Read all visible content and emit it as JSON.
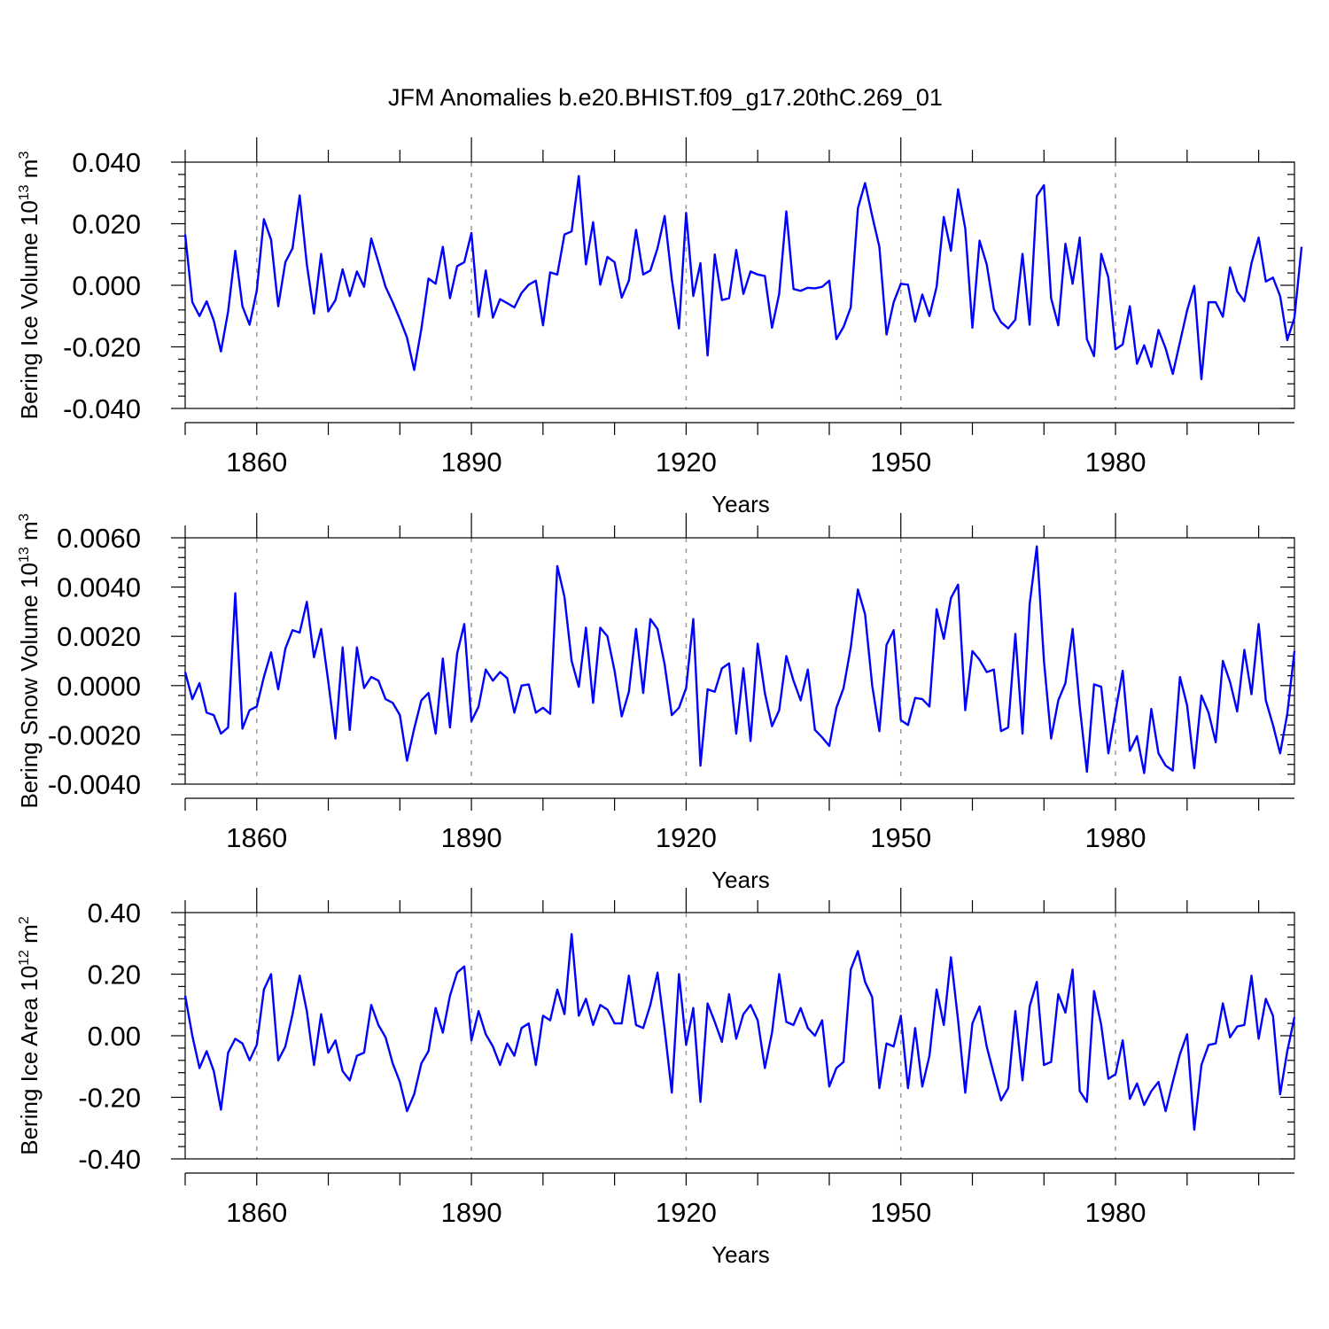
{
  "figure_title": "JFM Anomalies b.e20.BHIST.f09_g17.20thC.269_01",
  "line_color": "#0000ff",
  "chart_data": [
    {
      "type": "line",
      "id": "ice-volume",
      "ylabel": "Bering Ice Volume 10",
      "ylabel_exp": "13",
      "ylabel_unit": " m",
      "ylabel_unit_exp": "3",
      "xlabel": "Years",
      "xlim": [
        1850,
        2005
      ],
      "ylim": [
        -0.04,
        0.04
      ],
      "yticks": [
        -0.04,
        -0.02,
        0.0,
        0.02,
        0.04
      ],
      "ytick_labels": [
        "-0.040",
        "-0.020",
        "0.000",
        "0.020",
        "0.040"
      ],
      "xticks": [
        1860,
        1890,
        1920,
        1950,
        1980
      ],
      "xtick_labels": [
        "1860",
        "1890",
        "1920",
        "1950",
        "1980"
      ],
      "x_start": 1850,
      "values": [
        0.0165,
        -0.0055,
        -0.01,
        -0.0052,
        -0.0115,
        -0.0215,
        -0.0085,
        0.0112,
        -0.0068,
        -0.0128,
        -0.0018,
        0.0215,
        0.0148,
        -0.0068,
        0.0075,
        0.012,
        0.0292,
        0.0068,
        -0.0092,
        0.0102,
        -0.0085,
        -0.0048,
        0.0052,
        -0.0035,
        0.0045,
        -0.0005,
        0.0152,
        0.0075,
        -0.0005,
        -0.0055,
        -0.011,
        -0.017,
        -0.0275,
        -0.0142,
        0.0022,
        0.0005,
        0.0125,
        -0.0042,
        0.0062,
        0.0075,
        0.017,
        -0.0102,
        0.0048,
        -0.0105,
        -0.0045,
        -0.0058,
        -0.0072,
        -0.0025,
        0.0002,
        0.0015,
        -0.013,
        0.0042,
        0.0035,
        0.0165,
        0.0175,
        0.0355,
        0.0068,
        0.0205,
        0.0002,
        0.0092,
        0.0075,
        -0.004,
        0.0015,
        0.018,
        0.0035,
        0.0048,
        0.012,
        0.0225,
        0.002,
        -0.014,
        0.0235,
        -0.0035,
        0.0072,
        -0.0228,
        0.01,
        -0.0048,
        -0.0042,
        0.0115,
        -0.0028,
        0.0045,
        0.0035,
        0.003,
        -0.0138,
        -0.0028,
        0.024,
        -0.0012,
        -0.0018,
        -0.0008,
        -0.001,
        -0.0005,
        0.0015,
        -0.0175,
        -0.0135,
        -0.0072,
        0.025,
        0.0332,
        0.0225,
        0.0125,
        -0.016,
        -0.0055,
        0.0005,
        0.0002,
        -0.0118,
        -0.003,
        -0.01,
        -0.0005,
        0.0222,
        0.0112,
        0.0312,
        0.0185,
        -0.0138,
        0.0145,
        0.0068,
        -0.0078,
        -0.012,
        -0.014,
        -0.0112,
        0.0102,
        -0.0128,
        0.029,
        0.0325,
        -0.0042,
        -0.013,
        0.0135,
        0.0005,
        0.0155,
        -0.0175,
        -0.023,
        0.0102,
        0.0025,
        -0.0208,
        -0.0192,
        -0.0068,
        -0.0255,
        -0.0195,
        -0.0265,
        -0.0145,
        -0.0205,
        -0.0288,
        -0.0185,
        -0.0082,
        -0.0002,
        -0.0305,
        -0.0055,
        -0.0055,
        -0.0102,
        0.0058,
        -0.002,
        -0.0052,
        0.0072,
        0.0155,
        0.0012,
        0.0025,
        -0.0035,
        -0.0178,
        -0.0105,
        0.0125
      ]
    },
    {
      "type": "line",
      "id": "snow-volume",
      "ylabel": "Bering Snow Volume 10",
      "ylabel_exp": "13",
      "ylabel_unit": " m",
      "ylabel_unit_exp": "3",
      "xlabel": "Years",
      "xlim": [
        1850,
        2005
      ],
      "ylim": [
        -0.004,
        0.006
      ],
      "yticks": [
        -0.004,
        -0.002,
        0.0,
        0.002,
        0.004,
        0.006
      ],
      "ytick_labels": [
        "-0.0040",
        "-0.0020",
        "0.0000",
        "0.0020",
        "0.0040",
        "0.0060"
      ],
      "xticks": [
        1860,
        1890,
        1920,
        1950,
        1980
      ],
      "xtick_labels": [
        "1860",
        "1890",
        "1920",
        "1950",
        "1980"
      ],
      "x_start": 1850,
      "values": [
        0.00055,
        -0.00055,
        0.0001,
        -0.0011,
        -0.0012,
        -0.00195,
        -0.0017,
        0.00375,
        -0.00175,
        -0.001,
        -0.00085,
        0.00035,
        0.00135,
        -0.00015,
        0.0015,
        0.00225,
        0.00215,
        0.0034,
        0.00115,
        0.0023,
        0.00015,
        -0.00215,
        0.00155,
        -0.0018,
        0.00155,
        -0.0001,
        0.00035,
        0.0002,
        -0.00055,
        -0.0007,
        -0.0012,
        -0.00305,
        -0.00175,
        -0.0006,
        -0.0003,
        -0.00195,
        0.0011,
        -0.0017,
        0.0013,
        0.0025,
        -0.00145,
        -0.00085,
        0.00065,
        0.0002,
        0.00055,
        0.0003,
        -0.0011,
        0.0,
        5e-05,
        -0.0011,
        -0.0009,
        -0.00115,
        0.00485,
        0.0036,
        0.001,
        -5e-05,
        0.00235,
        -0.0007,
        0.00235,
        0.002,
        0.0006,
        -0.00125,
        -0.00025,
        0.0023,
        -0.0003,
        0.0027,
        0.0023,
        0.00085,
        -0.0012,
        -0.0009,
        -0.0001,
        0.0027,
        -0.00325,
        -0.00015,
        -0.00025,
        0.0007,
        0.0009,
        -0.00195,
        0.0007,
        -0.00225,
        0.0017,
        -0.0003,
        -0.00165,
        -0.001,
        0.0012,
        0.0002,
        -0.0006,
        0.00065,
        -0.0018,
        -0.0021,
        -0.00245,
        -0.0009,
        -0.0001,
        0.00155,
        0.0039,
        0.0029,
        0.0,
        -0.00185,
        0.00165,
        0.00225,
        -0.0014,
        -0.0016,
        -0.0005,
        -0.00055,
        -0.00085,
        0.0031,
        0.0019,
        0.00355,
        0.0041,
        -0.001,
        0.0014,
        0.00105,
        0.00055,
        0.00065,
        -0.00185,
        -0.0017,
        0.0021,
        -0.00195,
        0.0033,
        0.00565,
        0.001,
        -0.00215,
        -0.0006,
        0.0001,
        0.0023,
        -0.00085,
        -0.0035,
        5e-05,
        -5e-05,
        -0.00275,
        -0.00105,
        0.0006,
        -0.00265,
        -0.00205,
        -0.00355,
        -0.00095,
        -0.00275,
        -0.00325,
        -0.00345,
        0.00035,
        -0.0008,
        -0.00335,
        -0.0004,
        -0.0011,
        -0.0023,
        0.001,
        0.00015,
        -0.00105,
        0.00145,
        -0.00035,
        0.0025,
        -0.0006,
        -0.0016,
        -0.00275,
        -0.00115,
        0.0014
      ]
    },
    {
      "type": "line",
      "id": "ice-area",
      "ylabel": "Bering Ice Area 10",
      "ylabel_exp": "12",
      "ylabel_unit": " m",
      "ylabel_unit_exp": "2",
      "xlabel": "Years",
      "xlim": [
        1850,
        2005
      ],
      "ylim": [
        -0.4,
        0.4
      ],
      "yticks": [
        -0.4,
        -0.2,
        0.0,
        0.2,
        0.4
      ],
      "ytick_labels": [
        "-0.40",
        "-0.20",
        "0.00",
        "0.20",
        "0.40"
      ],
      "xticks": [
        1860,
        1890,
        1920,
        1950,
        1980
      ],
      "xtick_labels": [
        "1860",
        "1890",
        "1920",
        "1950",
        "1980"
      ],
      "x_start": 1850,
      "values": [
        0.13,
        0.0,
        -0.105,
        -0.05,
        -0.115,
        -0.24,
        -0.055,
        -0.01,
        -0.025,
        -0.08,
        -0.03,
        0.15,
        0.2,
        -0.08,
        -0.035,
        0.07,
        0.195,
        0.08,
        -0.095,
        0.07,
        -0.055,
        -0.015,
        -0.115,
        -0.145,
        -0.065,
        -0.055,
        0.1,
        0.035,
        -0.005,
        -0.09,
        -0.15,
        -0.245,
        -0.19,
        -0.09,
        -0.05,
        0.09,
        0.01,
        0.13,
        0.205,
        0.225,
        -0.015,
        0.08,
        0.005,
        -0.035,
        -0.095,
        -0.025,
        -0.065,
        0.025,
        0.04,
        -0.095,
        0.065,
        0.05,
        0.15,
        0.07,
        0.33,
        0.065,
        0.12,
        0.035,
        0.1,
        0.085,
        0.04,
        0.04,
        0.195,
        0.035,
        0.025,
        0.1,
        0.205,
        0.02,
        -0.185,
        0.2,
        -0.03,
        0.09,
        -0.215,
        0.105,
        0.045,
        -0.02,
        0.135,
        -0.01,
        0.07,
        0.1,
        0.05,
        -0.105,
        0.01,
        0.2,
        0.045,
        0.035,
        0.09,
        0.025,
        0.0,
        0.05,
        -0.165,
        -0.105,
        -0.085,
        0.215,
        0.275,
        0.175,
        0.125,
        -0.17,
        -0.025,
        -0.035,
        0.065,
        -0.17,
        0.025,
        -0.165,
        -0.065,
        0.15,
        0.035,
        0.255,
        0.05,
        -0.185,
        0.04,
        0.095,
        -0.035,
        -0.125,
        -0.21,
        -0.17,
        0.08,
        -0.145,
        0.095,
        0.175,
        -0.095,
        -0.085,
        0.135,
        0.075,
        0.215,
        -0.18,
        -0.215,
        0.145,
        0.035,
        -0.14,
        -0.125,
        -0.015,
        -0.205,
        -0.155,
        -0.225,
        -0.18,
        -0.15,
        -0.245,
        -0.15,
        -0.06,
        0.005,
        -0.305,
        -0.095,
        -0.03,
        -0.025,
        0.105,
        -0.005,
        0.03,
        0.035,
        0.195,
        -0.01,
        0.12,
        0.065,
        -0.19,
        -0.05,
        0.06
      ]
    }
  ]
}
